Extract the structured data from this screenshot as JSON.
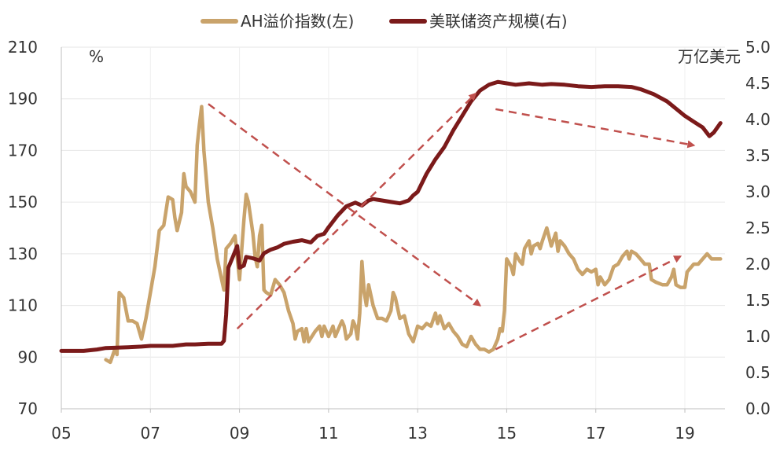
{
  "chart_data": {
    "type": "line",
    "legend": {
      "placement": "top",
      "entries": [
        "AH溢价指数(左)",
        "美联储资产规模(右)"
      ]
    },
    "left_axis": {
      "unit_label": "%",
      "range": [
        70,
        210
      ],
      "ticks": [
        "70",
        "90",
        "110",
        "130",
        "150",
        "170",
        "190",
        "210"
      ]
    },
    "right_axis": {
      "unit_label": "万亿美元",
      "range": [
        0,
        5
      ],
      "ticks": [
        "0.0",
        "0.5",
        "1.0",
        "1.5",
        "2.0",
        "2.5",
        "3.0",
        "3.5",
        "4.0",
        "4.5",
        "5.0"
      ]
    },
    "x_axis": {
      "range": [
        2005,
        2019.9
      ],
      "ticks": [
        {
          "year": 2005,
          "label": "05"
        },
        {
          "year": 2007,
          "label": "07"
        },
        {
          "year": 2009,
          "label": "09"
        },
        {
          "year": 2011,
          "label": "11"
        },
        {
          "year": 2013,
          "label": "13"
        },
        {
          "year": 2015,
          "label": "15"
        },
        {
          "year": 2017,
          "label": "17"
        },
        {
          "year": 2019,
          "label": "19"
        }
      ]
    },
    "grid": true,
    "series": [
      {
        "name": "AH溢价指数(左)",
        "axis": "left",
        "color": "#C9A36B",
        "points": [
          [
            2006.0,
            89
          ],
          [
            2006.1,
            88
          ],
          [
            2006.2,
            93
          ],
          [
            2006.25,
            91
          ],
          [
            2006.3,
            115
          ],
          [
            2006.4,
            113
          ],
          [
            2006.5,
            104
          ],
          [
            2006.6,
            104
          ],
          [
            2006.7,
            103
          ],
          [
            2006.8,
            97
          ],
          [
            2006.9,
            105
          ],
          [
            2007.0,
            115
          ],
          [
            2007.1,
            125
          ],
          [
            2007.2,
            139
          ],
          [
            2007.3,
            141
          ],
          [
            2007.4,
            152
          ],
          [
            2007.5,
            151
          ],
          [
            2007.55,
            144
          ],
          [
            2007.6,
            139
          ],
          [
            2007.7,
            146
          ],
          [
            2007.75,
            161
          ],
          [
            2007.8,
            156
          ],
          [
            2007.9,
            154
          ],
          [
            2008.0,
            150
          ],
          [
            2008.05,
            172
          ],
          [
            2008.1,
            180
          ],
          [
            2008.15,
            187
          ],
          [
            2008.2,
            170
          ],
          [
            2008.3,
            150
          ],
          [
            2008.4,
            140
          ],
          [
            2008.5,
            128
          ],
          [
            2008.6,
            120
          ],
          [
            2008.65,
            116
          ],
          [
            2008.7,
            132
          ],
          [
            2008.8,
            134
          ],
          [
            2008.9,
            137
          ],
          [
            2009.0,
            120
          ],
          [
            2009.1,
            143
          ],
          [
            2009.15,
            153
          ],
          [
            2009.2,
            150
          ],
          [
            2009.3,
            138
          ],
          [
            2009.35,
            129
          ],
          [
            2009.4,
            125
          ],
          [
            2009.45,
            137
          ],
          [
            2009.5,
            141
          ],
          [
            2009.55,
            116
          ],
          [
            2009.6,
            115
          ],
          [
            2009.7,
            114
          ],
          [
            2009.8,
            120
          ],
          [
            2009.9,
            118
          ],
          [
            2010.0,
            115
          ],
          [
            2010.1,
            108
          ],
          [
            2010.2,
            103
          ],
          [
            2010.25,
            97
          ],
          [
            2010.3,
            100
          ],
          [
            2010.4,
            101
          ],
          [
            2010.45,
            96
          ],
          [
            2010.5,
            101
          ],
          [
            2010.55,
            96
          ],
          [
            2010.7,
            100
          ],
          [
            2010.8,
            102
          ],
          [
            2010.85,
            98
          ],
          [
            2010.9,
            102
          ],
          [
            2011.0,
            98
          ],
          [
            2011.1,
            102
          ],
          [
            2011.15,
            98
          ],
          [
            2011.2,
            100
          ],
          [
            2011.3,
            104
          ],
          [
            2011.35,
            102
          ],
          [
            2011.4,
            97
          ],
          [
            2011.5,
            99
          ],
          [
            2011.55,
            104
          ],
          [
            2011.6,
            102
          ],
          [
            2011.65,
            97
          ],
          [
            2011.7,
            107
          ],
          [
            2011.75,
            127
          ],
          [
            2011.8,
            115
          ],
          [
            2011.85,
            110
          ],
          [
            2011.9,
            118
          ],
          [
            2012.0,
            110
          ],
          [
            2012.1,
            105
          ],
          [
            2012.2,
            105
          ],
          [
            2012.3,
            104
          ],
          [
            2012.4,
            108
          ],
          [
            2012.45,
            115
          ],
          [
            2012.5,
            113
          ],
          [
            2012.6,
            105
          ],
          [
            2012.7,
            106
          ],
          [
            2012.8,
            99
          ],
          [
            2012.9,
            96
          ],
          [
            2013.0,
            102
          ],
          [
            2013.1,
            101
          ],
          [
            2013.2,
            103
          ],
          [
            2013.3,
            102
          ],
          [
            2013.4,
            107
          ],
          [
            2013.45,
            103
          ],
          [
            2013.5,
            106
          ],
          [
            2013.6,
            101
          ],
          [
            2013.7,
            103
          ],
          [
            2013.8,
            100
          ],
          [
            2013.9,
            98
          ],
          [
            2014.0,
            95
          ],
          [
            2014.1,
            94
          ],
          [
            2014.2,
            98
          ],
          [
            2014.3,
            95
          ],
          [
            2014.4,
            93
          ],
          [
            2014.5,
            93
          ],
          [
            2014.6,
            92
          ],
          [
            2014.7,
            93
          ],
          [
            2014.8,
            97
          ],
          [
            2014.85,
            101
          ],
          [
            2014.9,
            100
          ],
          [
            2014.95,
            108
          ],
          [
            2015.0,
            128
          ],
          [
            2015.1,
            125
          ],
          [
            2015.15,
            122
          ],
          [
            2015.2,
            130
          ],
          [
            2015.3,
            127
          ],
          [
            2015.35,
            126
          ],
          [
            2015.4,
            132
          ],
          [
            2015.5,
            135
          ],
          [
            2015.55,
            130
          ],
          [
            2015.6,
            133
          ],
          [
            2015.7,
            134
          ],
          [
            2015.75,
            132
          ],
          [
            2015.8,
            135
          ],
          [
            2015.9,
            140
          ],
          [
            2016.0,
            133
          ],
          [
            2016.1,
            138
          ],
          [
            2016.15,
            131
          ],
          [
            2016.2,
            135
          ],
          [
            2016.3,
            133
          ],
          [
            2016.4,
            130
          ],
          [
            2016.5,
            128
          ],
          [
            2016.6,
            124
          ],
          [
            2016.7,
            122
          ],
          [
            2016.8,
            124
          ],
          [
            2016.9,
            123
          ],
          [
            2017.0,
            124
          ],
          [
            2017.05,
            118
          ],
          [
            2017.1,
            121
          ],
          [
            2017.2,
            118
          ],
          [
            2017.3,
            120
          ],
          [
            2017.4,
            125
          ],
          [
            2017.5,
            126
          ],
          [
            2017.6,
            129
          ],
          [
            2017.7,
            131
          ],
          [
            2017.75,
            128
          ],
          [
            2017.8,
            131
          ],
          [
            2017.9,
            130
          ],
          [
            2018.0,
            128
          ],
          [
            2018.1,
            126
          ],
          [
            2018.2,
            126
          ],
          [
            2018.25,
            120
          ],
          [
            2018.35,
            119
          ],
          [
            2018.5,
            118
          ],
          [
            2018.6,
            118
          ],
          [
            2018.7,
            121
          ],
          [
            2018.75,
            124
          ],
          [
            2018.8,
            118
          ],
          [
            2018.9,
            117
          ],
          [
            2019.0,
            117
          ],
          [
            2019.05,
            123
          ],
          [
            2019.1,
            124
          ],
          [
            2019.2,
            126
          ],
          [
            2019.3,
            126
          ],
          [
            2019.4,
            128
          ],
          [
            2019.5,
            130
          ],
          [
            2019.6,
            128
          ],
          [
            2019.8,
            128
          ]
        ]
      },
      {
        "name": "美联储资产规模(右)",
        "axis": "right",
        "color": "#7B1A1A",
        "points": [
          [
            2005.0,
            0.8
          ],
          [
            2005.5,
            0.8
          ],
          [
            2005.8,
            0.82
          ],
          [
            2006.0,
            0.84
          ],
          [
            2006.5,
            0.85
          ],
          [
            2006.8,
            0.86
          ],
          [
            2007.0,
            0.87
          ],
          [
            2007.5,
            0.87
          ],
          [
            2007.8,
            0.89
          ],
          [
            2008.0,
            0.89
          ],
          [
            2008.3,
            0.9
          ],
          [
            2008.6,
            0.9
          ],
          [
            2008.65,
            0.94
          ],
          [
            2008.7,
            1.3
          ],
          [
            2008.75,
            1.95
          ],
          [
            2008.85,
            2.1
          ],
          [
            2008.95,
            2.25
          ],
          [
            2009.0,
            1.95
          ],
          [
            2009.1,
            1.98
          ],
          [
            2009.15,
            2.1
          ],
          [
            2009.3,
            2.08
          ],
          [
            2009.45,
            2.05
          ],
          [
            2009.55,
            2.15
          ],
          [
            2009.7,
            2.2
          ],
          [
            2009.85,
            2.23
          ],
          [
            2010.0,
            2.28
          ],
          [
            2010.2,
            2.31
          ],
          [
            2010.4,
            2.33
          ],
          [
            2010.6,
            2.3
          ],
          [
            2010.75,
            2.39
          ],
          [
            2010.9,
            2.42
          ],
          [
            2011.0,
            2.51
          ],
          [
            2011.2,
            2.67
          ],
          [
            2011.4,
            2.8
          ],
          [
            2011.6,
            2.85
          ],
          [
            2011.75,
            2.81
          ],
          [
            2011.9,
            2.88
          ],
          [
            2012.0,
            2.9
          ],
          [
            2012.2,
            2.88
          ],
          [
            2012.4,
            2.86
          ],
          [
            2012.6,
            2.84
          ],
          [
            2012.8,
            2.88
          ],
          [
            2012.9,
            2.95
          ],
          [
            2013.0,
            3.0
          ],
          [
            2013.2,
            3.25
          ],
          [
            2013.4,
            3.45
          ],
          [
            2013.6,
            3.62
          ],
          [
            2013.8,
            3.85
          ],
          [
            2014.0,
            4.05
          ],
          [
            2014.2,
            4.25
          ],
          [
            2014.4,
            4.4
          ],
          [
            2014.6,
            4.48
          ],
          [
            2014.8,
            4.52
          ],
          [
            2015.0,
            4.5
          ],
          [
            2015.2,
            4.48
          ],
          [
            2015.5,
            4.5
          ],
          [
            2015.8,
            4.48
          ],
          [
            2016.0,
            4.49
          ],
          [
            2016.3,
            4.48
          ],
          [
            2016.6,
            4.46
          ],
          [
            2016.9,
            4.45
          ],
          [
            2017.2,
            4.46
          ],
          [
            2017.5,
            4.46
          ],
          [
            2017.8,
            4.45
          ],
          [
            2018.0,
            4.42
          ],
          [
            2018.3,
            4.35
          ],
          [
            2018.6,
            4.25
          ],
          [
            2018.8,
            4.15
          ],
          [
            2019.0,
            4.05
          ],
          [
            2019.2,
            3.97
          ],
          [
            2019.4,
            3.89
          ],
          [
            2019.55,
            3.77
          ],
          [
            2019.65,
            3.82
          ],
          [
            2019.8,
            3.95
          ]
        ]
      }
    ],
    "annotations": [
      {
        "type": "dashed-arrow",
        "color": "#C0504D",
        "from": {
          "year": 2008.3,
          "left": 188
        },
        "to": {
          "year": 2014.4,
          "left": 110
        }
      },
      {
        "type": "dashed-arrow",
        "color": "#C0504D",
        "from": {
          "year": 2008.95,
          "left": 101
        },
        "to": {
          "year": 2014.3,
          "left": 192
        }
      },
      {
        "type": "dashed-arrow",
        "color": "#C0504D",
        "from": {
          "year": 2014.75,
          "left": 186
        },
        "to": {
          "year": 2019.2,
          "left": 172
        }
      },
      {
        "type": "dashed-arrow",
        "color": "#C0504D",
        "from": {
          "year": 2014.75,
          "left": 93
        },
        "to": {
          "year": 2018.9,
          "left": 129
        }
      }
    ]
  }
}
